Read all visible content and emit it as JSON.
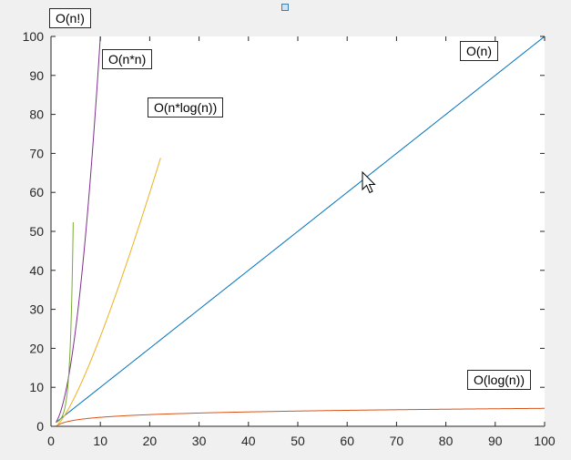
{
  "figure": {
    "background": "#f0f0f0",
    "axes_background": "#ffffff"
  },
  "chart_data": {
    "type": "line",
    "title": "",
    "xlabel": "",
    "ylabel": "",
    "xlim": [
      0,
      100
    ],
    "ylim": [
      0,
      100
    ],
    "grid": false,
    "x_ticks": [
      "0",
      "10",
      "20",
      "30",
      "40",
      "50",
      "60",
      "70",
      "80",
      "90",
      "100"
    ],
    "y_ticks": [
      "0",
      "10",
      "20",
      "30",
      "40",
      "50",
      "60",
      "70",
      "80",
      "90",
      "100"
    ],
    "series": [
      {
        "name": "O(n)",
        "color": "#0072bd",
        "function": "n",
        "x": [
          1,
          100
        ],
        "y": [
          1,
          100
        ]
      },
      {
        "name": "O(log(n))",
        "color": "#d95319",
        "function": "log(n)",
        "x": [
          1,
          2,
          5,
          10,
          20,
          50,
          100
        ],
        "y": [
          0,
          0.69,
          1.61,
          2.3,
          3.0,
          3.91,
          4.61
        ]
      },
      {
        "name": "O(n*log(n))",
        "color": "#edb120",
        "function": "n*log(n)",
        "x": [
          1,
          2,
          5,
          10,
          15,
          20,
          22.2
        ],
        "y": [
          0,
          1.39,
          8.05,
          23.0,
          40.6,
          59.9,
          68.8
        ]
      },
      {
        "name": "O(n*n)",
        "color": "#7e2f8e",
        "function": "n*n",
        "x": [
          1,
          2,
          4,
          6,
          8,
          10
        ],
        "y": [
          1,
          4,
          16,
          36,
          64,
          100
        ]
      },
      {
        "name": "O(n!)",
        "color": "#77ac30",
        "function": "n!",
        "x": [
          1,
          2,
          3,
          4,
          4.5
        ],
        "y": [
          1,
          2,
          6,
          24,
          52.3
        ]
      }
    ],
    "annotations": [
      {
        "text": "O(n!)"
      },
      {
        "text": "O(n*n)"
      },
      {
        "text": "O(n*log(n))"
      },
      {
        "text": "O(n)"
      },
      {
        "text": "O(log(n))"
      }
    ]
  }
}
